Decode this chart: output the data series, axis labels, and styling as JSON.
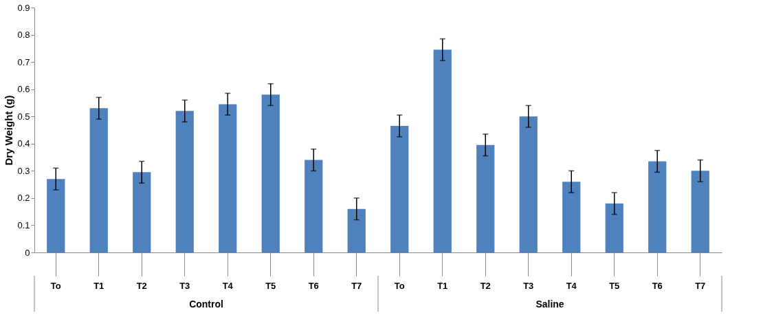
{
  "chart_data": {
    "type": "bar",
    "ylabel": "Dry Weight (g)",
    "categories": [
      "To",
      "T1",
      "T2",
      "T3",
      "T4",
      "T5",
      "T6",
      "T7",
      "To",
      "T1",
      "T2",
      "T3",
      "T4",
      "T5",
      "T6",
      "T7"
    ],
    "values": [
      0.27,
      0.53,
      0.295,
      0.52,
      0.545,
      0.58,
      0.34,
      0.16,
      0.465,
      0.745,
      0.395,
      0.5,
      0.26,
      0.18,
      0.335,
      0.3
    ],
    "errors": [
      0.04,
      0.04,
      0.04,
      0.04,
      0.04,
      0.04,
      0.04,
      0.04,
      0.04,
      0.04,
      0.04,
      0.04,
      0.04,
      0.04,
      0.04,
      0.04
    ],
    "color": "#4f81bd",
    "ylim": [
      0,
      0.9
    ],
    "yticks": [
      0,
      0.1,
      0.2,
      0.3,
      0.4,
      0.5,
      0.6,
      0.7,
      0.8,
      0.9
    ],
    "annotations": [
      "Control",
      "Saline"
    ],
    "grid": false
  }
}
